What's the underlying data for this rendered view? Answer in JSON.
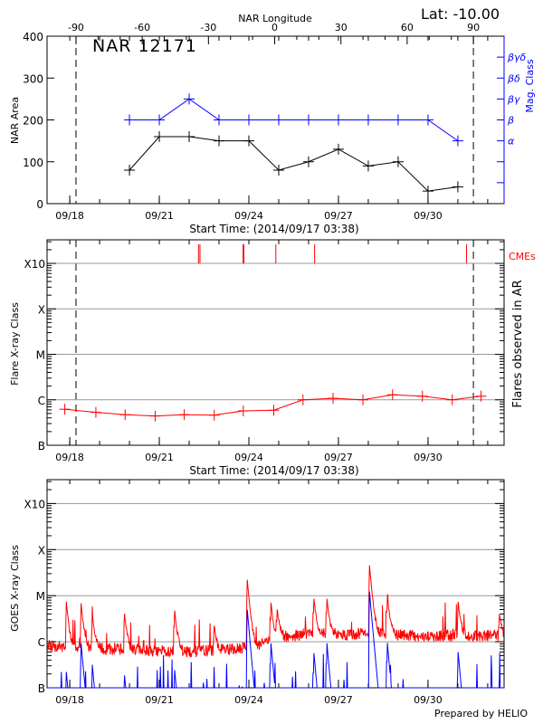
{
  "header": {
    "lat_label": "Lat: -10.00",
    "region_title": "NAR 12171",
    "footer": "Prepared by HELIO"
  },
  "colors": {
    "axis": "#000000",
    "mag": "#0000ff",
    "flare": "#ff0000",
    "goes_long": "#ff0000",
    "goes_short": "#0000ff",
    "grid": "#999999"
  },
  "chart_data": [
    {
      "type": "line",
      "panel": "top",
      "title": "NAR 12171",
      "xlabel": "Start Time: (2014/09/17 03:38)",
      "ylabel": "NAR Area",
      "y2label": "Mag. Class",
      "top_axis_label": "NAR Longitude",
      "xlim": [
        "2014-09-17T05:45",
        "2014-10-02T13:10"
      ],
      "ylim": [
        0,
        400
      ],
      "yticks": [
        "0",
        "100",
        "200",
        "300",
        "400"
      ],
      "xticks": [
        "09/18",
        "09/21",
        "09/24",
        "09/27",
        "09/30"
      ],
      "longitude_ticks": [
        "-90",
        "-60",
        "-30",
        "0",
        "30",
        "60",
        "90"
      ],
      "longitude_reference": [
        {
          "lon": -90,
          "date": "2014-09-18T05:00"
        },
        {
          "lon": 90,
          "date": "2014-10-01T12:30"
        }
      ],
      "mag_class_ticks": [
        "α",
        "β",
        "βγ",
        "βδ",
        "βγδ"
      ],
      "series": [
        {
          "key": "area",
          "x": [
            "2014-09-20T00:00",
            "2014-09-21T00:00",
            "2014-09-22T00:00",
            "2014-09-23T00:00",
            "2014-09-24T00:00",
            "2014-09-25T00:00",
            "2014-09-26T00:00",
            "2014-09-27T00:00",
            "2014-09-28T00:00",
            "2014-09-29T00:00",
            "2014-09-30T00:00",
            "2014-10-01T00:00"
          ],
          "values": [
            80,
            160,
            160,
            150,
            150,
            80,
            100,
            130,
            90,
            100,
            30,
            40
          ]
        },
        {
          "key": "mag_class",
          "x": [
            "2014-09-20T00:00",
            "2014-09-21T00:00",
            "2014-09-22T00:00",
            "2014-09-23T00:00",
            "2014-09-24T00:00",
            "2014-09-25T00:00",
            "2014-09-26T00:00",
            "2014-09-27T00:00",
            "2014-09-28T00:00",
            "2014-09-29T00:00",
            "2014-09-30T00:00",
            "2014-10-01T00:00"
          ],
          "values": [
            "β",
            "β",
            "βγ",
            "β",
            "β",
            "β",
            "β",
            "β",
            "β",
            "β",
            "β",
            "α"
          ]
        }
      ]
    },
    {
      "type": "line",
      "panel": "middle",
      "xlabel": "Start Time: (2014/09/17 03:38)",
      "ylabel": "Flare X-ray Class",
      "y2label": "Flares observed in AR",
      "cme_label": "CMEs",
      "yscale": "log",
      "xlim": [
        "2014-09-17T05:45",
        "2014-10-02T13:10"
      ],
      "ylim": [
        1e-07,
        0.0033
      ],
      "yticks": [
        {
          "label": "X10",
          "value": 0.001
        },
        {
          "label": "X",
          "value": 0.0001
        },
        {
          "label": "M",
          "value": 1e-05
        },
        {
          "label": "C",
          "value": 1e-06
        },
        {
          "label": "B",
          "value": 1e-07
        }
      ],
      "xticks": [
        "09/18",
        "09/21",
        "09/24",
        "09/27",
        "09/30"
      ],
      "grid": true,
      "series": [
        {
          "key": "flares",
          "x": [
            "2014-09-17T20:00",
            "2014-09-18T21:00",
            "2014-09-19T20:30",
            "2014-09-20T20:40",
            "2014-09-21T20:00",
            "2014-09-22T20:10",
            "2014-09-23T19:30",
            "2014-09-24T20:00",
            "2014-09-25T19:30",
            "2014-09-26T19:40",
            "2014-09-27T19:40",
            "2014-09-28T19:30",
            "2014-09-29T19:30",
            "2014-09-30T19:30",
            "2014-10-01T18:40"
          ],
          "values": [
            6.2e-07,
            5.3e-07,
            4.7e-07,
            4.4e-07,
            4.7e-07,
            4.6e-07,
            5.7e-07,
            5.9e-07,
            1e-06,
            1.08e-06,
            1e-06,
            1.29e-06,
            1.2e-06,
            1e-06,
            1.2e-06
          ]
        }
      ],
      "cmes": [
        "2014-09-22T07:30",
        "2014-09-22T08:40",
        "2014-09-23T19:20",
        "2014-09-23T20:00",
        "2014-09-24T21:40",
        "2014-09-26T04:50",
        "2014-10-01T07:00"
      ]
    },
    {
      "type": "line",
      "panel": "bottom",
      "ylabel": "GOES X-ray Class",
      "yscale": "log",
      "xlim": [
        "2014-09-17T05:45",
        "2014-10-02T13:10"
      ],
      "ylim": [
        1e-07,
        0.0033
      ],
      "yticks": [
        {
          "label": "X10",
          "value": 0.001
        },
        {
          "label": "X",
          "value": 0.0001
        },
        {
          "label": "M",
          "value": 1e-05
        },
        {
          "label": "C",
          "value": 1e-06
        },
        {
          "label": "B",
          "value": 1e-07
        }
      ],
      "xticks": [
        "09/18",
        "09/21",
        "09/24",
        "09/27",
        "09/30"
      ],
      "grid": true,
      "long_channel_background": {
        "x": [
          "2014-09-17T05:45",
          "2014-09-19T00:00",
          "2014-09-20T12:00",
          "2014-09-22T00:00",
          "2014-09-23T12:00",
          "2014-09-24T12:00",
          "2014-09-25T00:00",
          "2014-09-26T00:00",
          "2014-09-27T00:00",
          "2014-09-28T00:00",
          "2014-09-29T00:00",
          "2014-09-30T00:00",
          "2014-10-01T00:00",
          "2014-10-02T13:10"
        ],
        "values": [
          8e-07,
          7e-07,
          6.5e-07,
          6e-07,
          7e-07,
          9e-07,
          1.2e-06,
          1.5e-06,
          1.4e-06,
          1.5e-06,
          1.4e-06,
          1.3e-06,
          1.4e-06,
          1.3e-06
        ]
      },
      "long_channel_peaks": [
        {
          "t": "2014-09-17T21:00",
          "v": 7.6e-06
        },
        {
          "t": "2014-09-18T09:00",
          "v": 6.6e-06
        },
        {
          "t": "2014-09-18T18:00",
          "v": 3.5e-06
        },
        {
          "t": "2014-09-19T20:00",
          "v": 3.4e-06
        },
        {
          "t": "2014-09-21T12:00",
          "v": 5.3e-06
        },
        {
          "t": "2014-09-22T20:00",
          "v": 1.6e-06
        },
        {
          "t": "2014-09-23T22:30",
          "v": 2.4e-05
        },
        {
          "t": "2014-09-24T17:30",
          "v": 7e-06
        },
        {
          "t": "2014-09-24T22:30",
          "v": 4.8e-06
        },
        {
          "t": "2014-09-26T04:00",
          "v": 8.7e-06
        },
        {
          "t": "2014-09-26T14:30",
          "v": 8.3e-06
        },
        {
          "t": "2014-09-28T00:45",
          "v": 5e-05
        },
        {
          "t": "2014-09-28T15:00",
          "v": 1.05e-05
        },
        {
          "t": "2014-10-01T00:00",
          "v": 7e-06
        },
        {
          "t": "2014-10-02T09:00",
          "v": 3.5e-06
        }
      ],
      "short_channel_peaks": [
        {
          "t": "2014-09-17T21:00",
          "v": 2.6e-07
        },
        {
          "t": "2014-09-18T09:00",
          "v": 1e-06
        },
        {
          "t": "2014-09-18T18:00",
          "v": 3.4e-07
        },
        {
          "t": "2014-09-19T20:00",
          "v": 1.9e-07
        },
        {
          "t": "2014-09-21T12:00",
          "v": 3.1e-07
        },
        {
          "t": "2014-09-23T22:30",
          "v": 5.6e-06
        },
        {
          "t": "2014-09-24T17:30",
          "v": 1.1e-06
        },
        {
          "t": "2014-09-26T04:00",
          "v": 7e-07
        },
        {
          "t": "2014-09-26T14:30",
          "v": 1.1e-06
        },
        {
          "t": "2014-09-28T00:45",
          "v": 1.4e-05
        },
        {
          "t": "2014-09-28T15:00",
          "v": 1.2e-06
        },
        {
          "t": "2014-10-01T00:00",
          "v": 7e-07
        },
        {
          "t": "2014-10-02T09:00",
          "v": 2e-07
        }
      ]
    }
  ]
}
